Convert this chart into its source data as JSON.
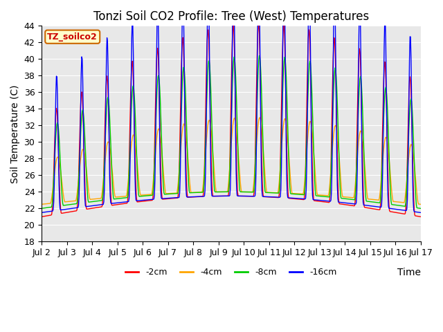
{
  "title": "Tonzi Soil CO2 Profile: Tree (West) Temperatures",
  "xlabel": "Time",
  "ylabel": "Soil Temperature (C)",
  "legend_label": "TZ_soilco2",
  "series_labels": [
    "-2cm",
    "-4cm",
    "-8cm",
    "-16cm"
  ],
  "series_colors": [
    "#ff0000",
    "#ffa500",
    "#00cc00",
    "#0000ff"
  ],
  "ylim": [
    18,
    44
  ],
  "yticks": [
    18,
    20,
    22,
    24,
    26,
    28,
    30,
    32,
    34,
    36,
    38,
    40,
    42,
    44
  ],
  "plot_bg_color": "#e8e8e8",
  "title_fontsize": 12,
  "axis_fontsize": 10,
  "tick_fontsize": 9,
  "legend_fontsize": 9,
  "n_days": 15,
  "start_day": 2,
  "pts_per_day": 48
}
